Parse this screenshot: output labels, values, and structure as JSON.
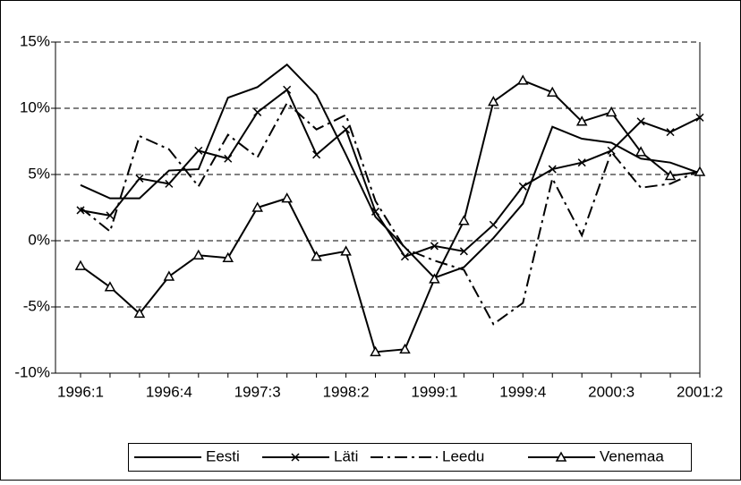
{
  "chart_data": {
    "type": "line",
    "categories": [
      "1996:1",
      null,
      null,
      "1996:4",
      null,
      null,
      "1997:3",
      null,
      null,
      "1998:2",
      null,
      null,
      "1999:1",
      null,
      null,
      "1999:4",
      null,
      null,
      "2000:3",
      null,
      null,
      "2001:2"
    ],
    "series": [
      {
        "name": "Eesti",
        "color": "#000000",
        "marker": "none",
        "dash": "solid",
        "values": [
          4.2,
          3.2,
          3.2,
          5.3,
          5.4,
          10.8,
          11.6,
          13.3,
          11.0,
          6.5,
          1.8,
          -0.5,
          -2.8,
          -2.0,
          0.2,
          2.8,
          8.6,
          7.7,
          7.4,
          6.2,
          5.9,
          5.1
        ]
      },
      {
        "name": "Läti",
        "color": "#000000",
        "marker": "x",
        "dash": "solid",
        "values": [
          2.3,
          1.9,
          4.7,
          4.3,
          6.8,
          6.2,
          9.7,
          11.4,
          6.5,
          8.4,
          2.2,
          -1.2,
          -0.4,
          -0.8,
          1.2,
          4.1,
          5.4,
          5.9,
          6.8,
          9.0,
          8.2,
          9.3
        ]
      },
      {
        "name": "Leedu",
        "color": "#000000",
        "marker": "none",
        "dash": "dash-dot",
        "values": [
          2.5,
          0.7,
          7.9,
          6.9,
          4.1,
          8.0,
          6.3,
          10.4,
          8.4,
          9.5,
          3.0,
          -0.6,
          -1.5,
          -2.2,
          -6.3,
          -4.7,
          4.7,
          0.4,
          6.7,
          4.0,
          4.3,
          5.3
        ]
      },
      {
        "name": "Venemaa",
        "color": "#000000",
        "marker": "triangle",
        "dash": "solid",
        "values": [
          -1.9,
          -3.5,
          -5.5,
          -2.7,
          -1.1,
          -1.3,
          2.5,
          3.2,
          -1.2,
          -0.8,
          -8.4,
          -8.2,
          -2.9,
          1.5,
          10.5,
          12.1,
          11.2,
          9.0,
          9.7,
          6.7,
          4.9,
          5.2
        ]
      }
    ],
    "ylim": [
      -10,
      15
    ],
    "yticks": [
      {
        "value": -10,
        "label": "-10%"
      },
      {
        "value": -5,
        "label": "-5%"
      },
      {
        "value": 0,
        "label": "0%"
      },
      {
        "value": 5,
        "label": "5%"
      },
      {
        "value": 10,
        "label": "10%"
      },
      {
        "value": 15,
        "label": "15%"
      }
    ],
    "grid": true,
    "legend": "bottom"
  }
}
